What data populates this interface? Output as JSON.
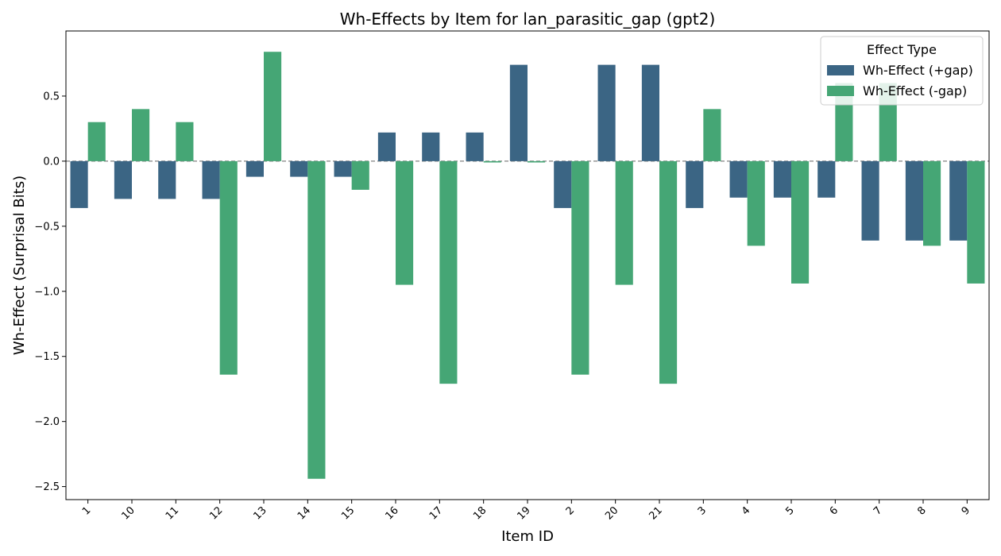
{
  "chart_data": {
    "type": "bar",
    "title": "Wh-Effects by Item for lan_parasitic_gap (gpt2)",
    "xlabel": "Item ID",
    "ylabel": "Wh-Effect (Surprisal Bits)",
    "ylim": [
      -2.6,
      1.0
    ],
    "yticks": [
      -2.5,
      -2.0,
      -1.5,
      -1.0,
      -0.5,
      0.0,
      0.5
    ],
    "ytick_labels": [
      "−2.5",
      "−2.0",
      "−1.5",
      "−1.0",
      "−0.5",
      "0.0",
      "0.5"
    ],
    "categories": [
      "1",
      "10",
      "11",
      "12",
      "13",
      "14",
      "15",
      "16",
      "17",
      "18",
      "19",
      "2",
      "20",
      "21",
      "3",
      "4",
      "5",
      "6",
      "7",
      "8",
      "9"
    ],
    "legend_title": "Effect Type",
    "legend_position": "top-right",
    "zero_line": "dashed",
    "series": [
      {
        "name": "Wh-Effect (+gap)",
        "color": "#3b6584",
        "values": [
          -0.36,
          -0.29,
          -0.29,
          -0.29,
          -0.12,
          -0.12,
          -0.12,
          0.22,
          0.22,
          0.22,
          0.74,
          -0.36,
          0.74,
          0.74,
          -0.36,
          -0.28,
          -0.28,
          -0.28,
          -0.61,
          -0.61,
          -0.61
        ]
      },
      {
        "name": "Wh-Effect (-gap)",
        "color": "#45a675",
        "values": [
          0.3,
          0.4,
          0.3,
          -1.64,
          0.84,
          -2.44,
          -0.22,
          -0.95,
          -1.71,
          -0.01,
          -0.01,
          -1.64,
          -0.95,
          -1.71,
          0.4,
          -0.65,
          -0.94,
          0.6,
          0.6,
          -0.65,
          -0.94
        ]
      }
    ]
  }
}
